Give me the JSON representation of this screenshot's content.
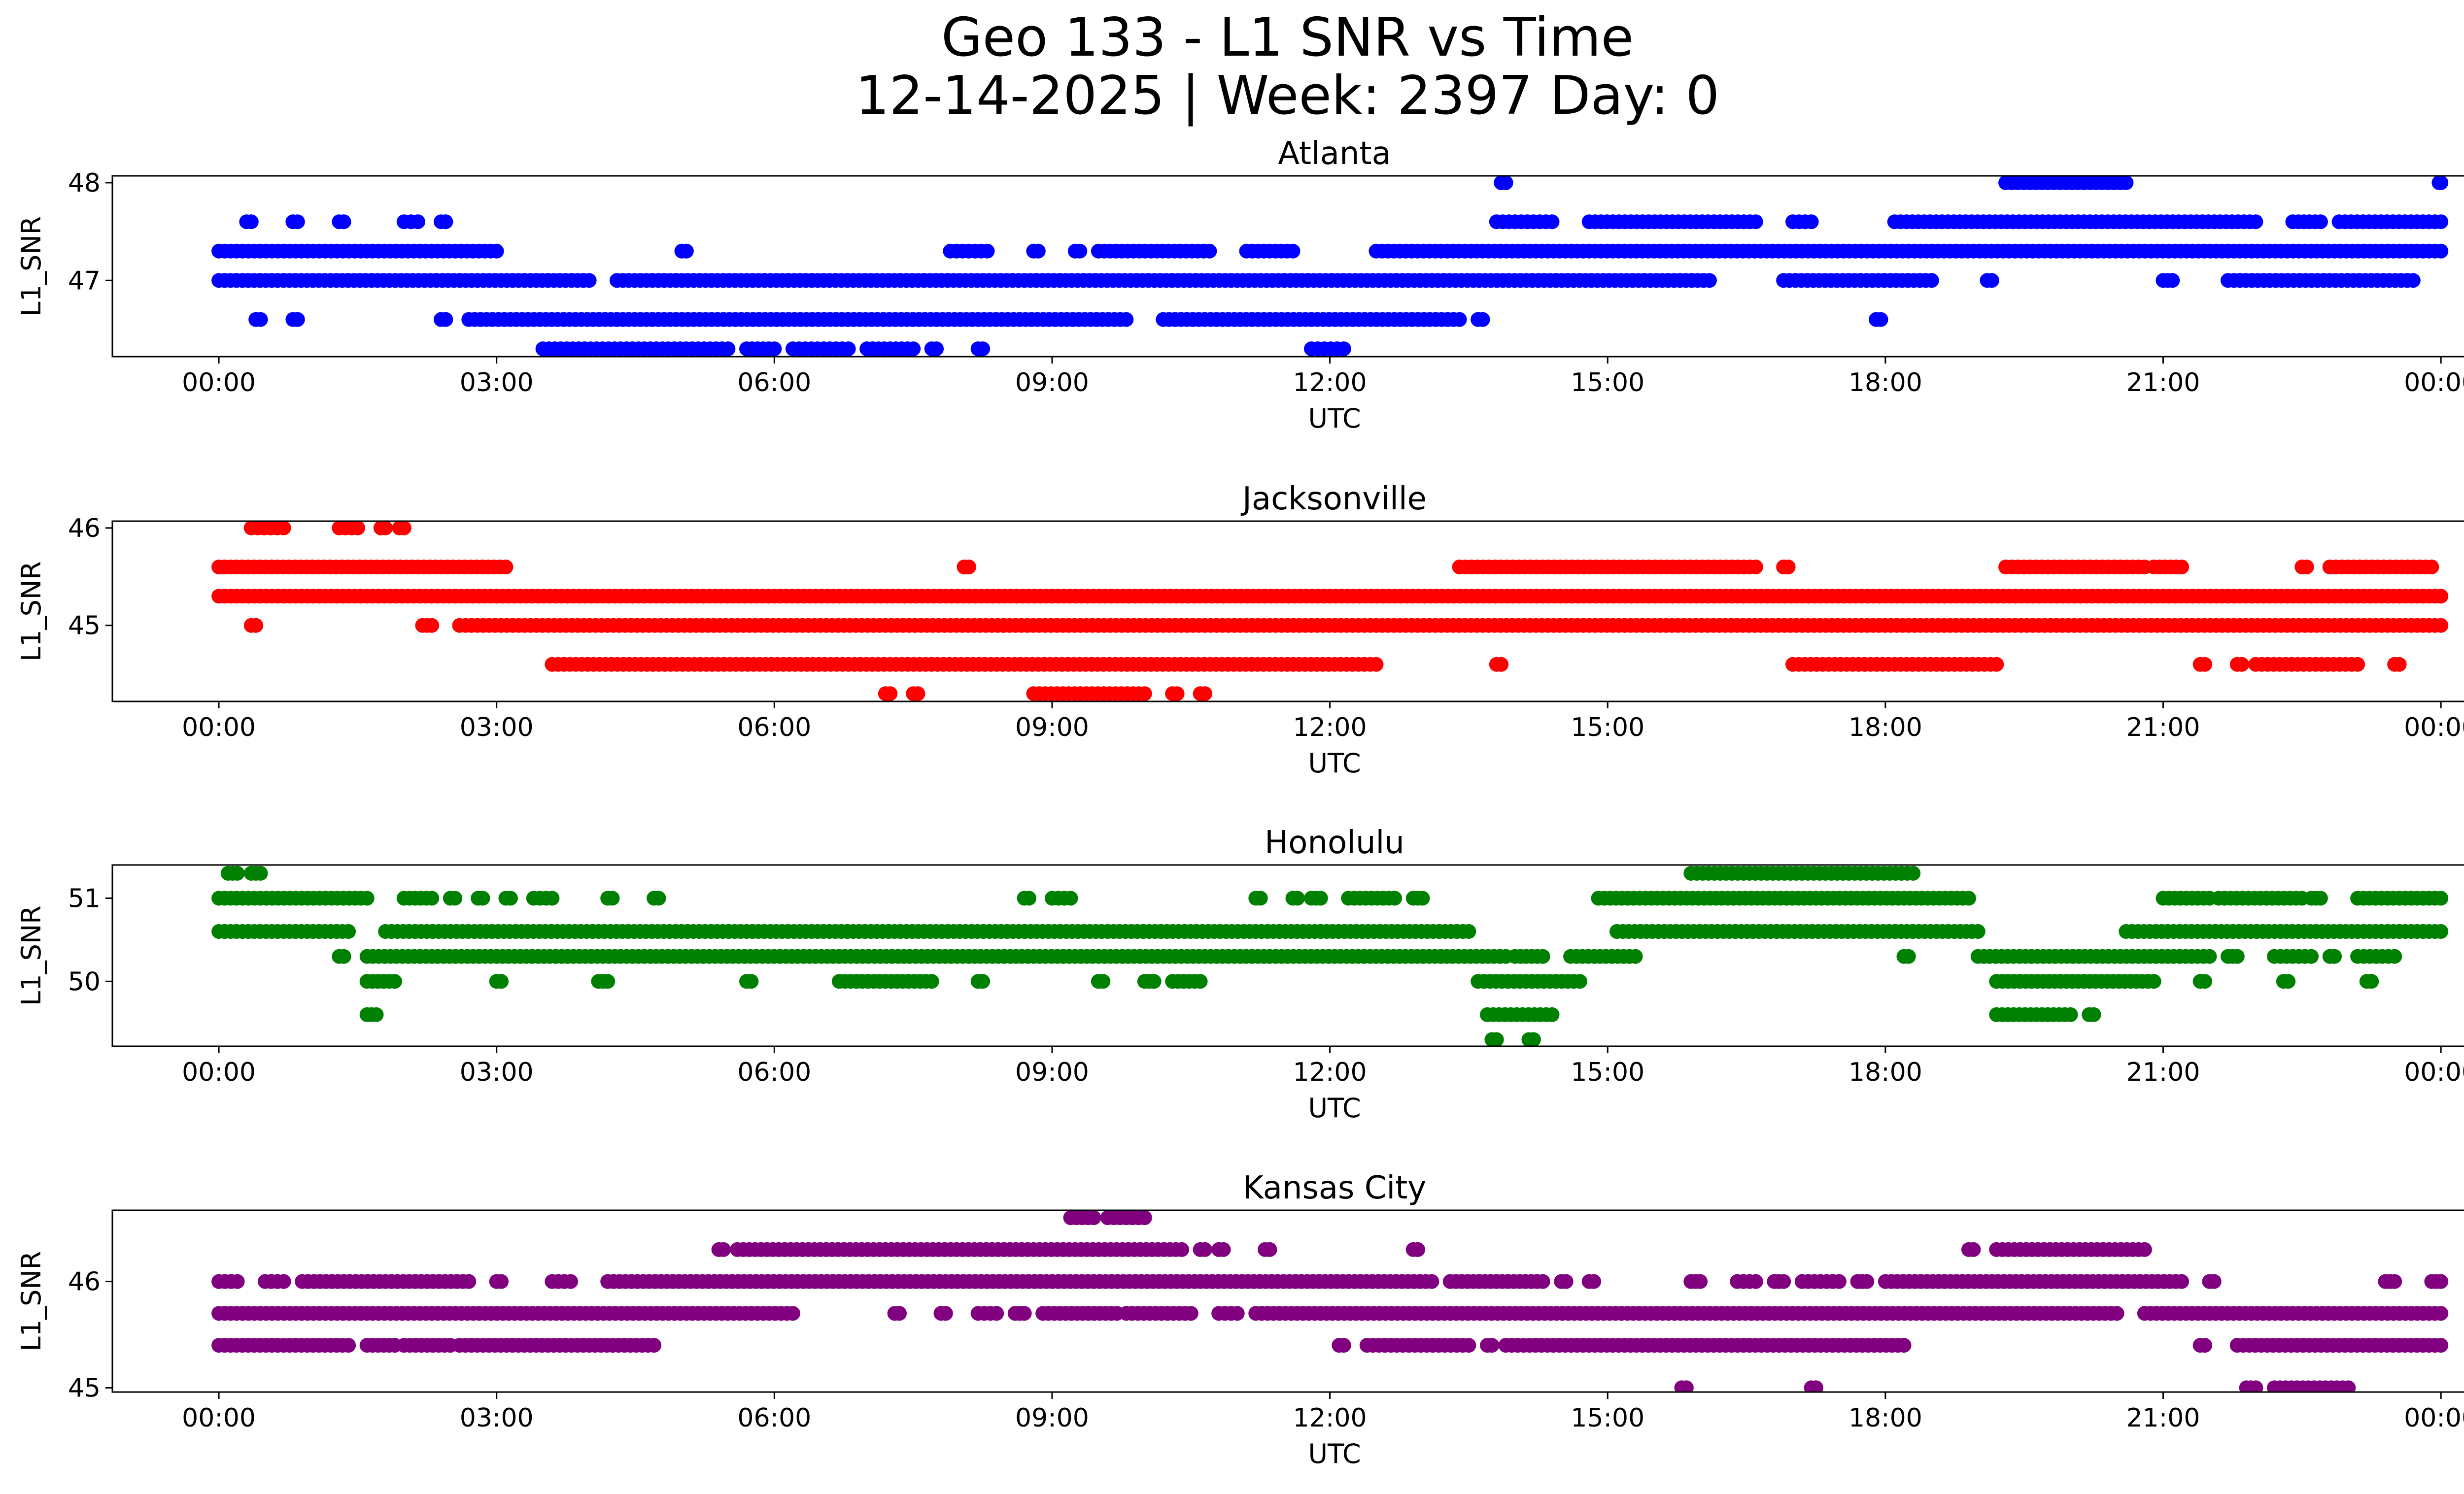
{
  "title": {
    "line1": "Geo 133 - L1 SNR vs Time",
    "line2": "12-14-2025 | Week: 2397 Day: 0"
  },
  "chart_data": [
    {
      "type": "scatter",
      "title": "Atlanta",
      "color": "#0000ff",
      "xlabel": "UTC",
      "ylabel": "L1_SNR",
      "x_units": "hours UTC",
      "xlim": [
        -1.15,
        25.25
      ],
      "xticks": [
        0,
        3,
        6,
        9,
        12,
        15,
        18,
        21,
        24
      ],
      "xtick_labels": [
        "00:00",
        "03:00",
        "06:00",
        "09:00",
        "12:00",
        "15:00",
        "18:00",
        "21:00",
        "00:00"
      ],
      "ylim": [
        46.22,
        48.07
      ],
      "yticks": [
        47,
        48
      ],
      "ytick_labels": [
        "47",
        "48"
      ],
      "bands": [
        {
          "y": 48.0,
          "segments": [
            [
              13.85,
              13.9
            ],
            [
              19.3,
              20.6
            ],
            [
              23.98,
              24.0
            ]
          ]
        },
        {
          "y": 47.6,
          "segments": [
            [
              0.3,
              0.35
            ],
            [
              0.8,
              0.85
            ],
            [
              1.3,
              1.35
            ],
            [
              2.0,
              2.15
            ],
            [
              2.4,
              2.45
            ],
            [
              13.8,
              14.4
            ],
            [
              14.8,
              16.6
            ],
            [
              17.0,
              17.2
            ],
            [
              18.1,
              22.0
            ],
            [
              22.4,
              22.7
            ],
            [
              22.9,
              24.0
            ]
          ]
        },
        {
          "y": 47.3,
          "segments": [
            [
              0.0,
              3.0
            ],
            [
              5.0,
              5.05
            ],
            [
              7.9,
              8.3
            ],
            [
              8.8,
              8.85
            ],
            [
              9.25,
              9.3
            ],
            [
              9.5,
              10.7
            ],
            [
              11.1,
              11.6
            ],
            [
              12.5,
              24.0
            ]
          ]
        },
        {
          "y": 47.0,
          "segments": [
            [
              0.0,
              4.0
            ],
            [
              4.3,
              16.1
            ],
            [
              16.9,
              18.5
            ],
            [
              19.1,
              19.15
            ],
            [
              21.0,
              21.1
            ],
            [
              21.7,
              23.7
            ]
          ]
        },
        {
          "y": 46.6,
          "segments": [
            [
              0.4,
              0.45
            ],
            [
              0.8,
              0.85
            ],
            [
              2.4,
              2.45
            ],
            [
              2.7,
              9.8
            ],
            [
              10.2,
              13.4
            ],
            [
              13.6,
              13.65
            ],
            [
              17.9,
              17.95
            ]
          ]
        },
        {
          "y": 46.3,
          "segments": [
            [
              3.5,
              5.5
            ],
            [
              5.7,
              6.0
            ],
            [
              6.2,
              6.8
            ],
            [
              7.0,
              7.5
            ],
            [
              7.7,
              7.75
            ],
            [
              8.2,
              8.25
            ],
            [
              11.8,
              12.15
            ]
          ]
        }
      ]
    },
    {
      "type": "scatter",
      "title": "Jacksonville",
      "color": "#ff0000",
      "xlabel": "UTC",
      "ylabel": "L1_SNR",
      "x_units": "hours UTC",
      "xlim": [
        -1.15,
        25.25
      ],
      "xticks": [
        0,
        3,
        6,
        9,
        12,
        15,
        18,
        21,
        24
      ],
      "xtick_labels": [
        "00:00",
        "03:00",
        "06:00",
        "09:00",
        "12:00",
        "15:00",
        "18:00",
        "21:00",
        "00:00"
      ],
      "ylim": [
        44.22,
        46.07
      ],
      "yticks": [
        45,
        46
      ],
      "ytick_labels": [
        "45",
        "46"
      ],
      "bands": [
        {
          "y": 46.0,
          "segments": [
            [
              0.35,
              0.7
            ],
            [
              1.3,
              1.5
            ],
            [
              1.75,
              1.8
            ],
            [
              1.95,
              2.0
            ]
          ]
        },
        {
          "y": 45.6,
          "segments": [
            [
              0.0,
              3.1
            ],
            [
              8.05,
              8.1
            ],
            [
              13.4,
              16.6
            ],
            [
              16.9,
              16.95
            ],
            [
              19.3,
              20.8
            ],
            [
              20.9,
              21.2
            ],
            [
              22.5,
              22.55
            ],
            [
              22.8,
              23.9
            ]
          ]
        },
        {
          "y": 45.3,
          "segments": [
            [
              0.0,
              24.0
            ]
          ]
        },
        {
          "y": 45.0,
          "segments": [
            [
              0.35,
              0.4
            ],
            [
              2.2,
              2.3
            ],
            [
              2.6,
              24.0
            ]
          ]
        },
        {
          "y": 44.6,
          "segments": [
            [
              3.6,
              12.5
            ],
            [
              13.8,
              13.85
            ],
            [
              17.0,
              19.2
            ],
            [
              21.4,
              21.45
            ],
            [
              21.8,
              21.85
            ],
            [
              22.0,
              23.1
            ],
            [
              23.5,
              23.55
            ]
          ]
        },
        {
          "y": 44.3,
          "segments": [
            [
              7.2,
              7.25
            ],
            [
              7.5,
              7.55
            ],
            [
              8.8,
              10.0
            ],
            [
              10.3,
              10.35
            ],
            [
              10.6,
              10.65
            ]
          ]
        }
      ]
    },
    {
      "type": "scatter",
      "title": "Honolulu",
      "color": "#008000",
      "xlabel": "UTC",
      "ylabel": "L1_SNR",
      "x_units": "hours UTC",
      "xlim": [
        -1.15,
        25.25
      ],
      "xticks": [
        0,
        3,
        6,
        9,
        12,
        15,
        18,
        21,
        24
      ],
      "xtick_labels": [
        "00:00",
        "03:00",
        "06:00",
        "09:00",
        "12:00",
        "15:00",
        "18:00",
        "21:00",
        "00:00"
      ],
      "ylim": [
        49.22,
        51.4
      ],
      "yticks": [
        50,
        51
      ],
      "ytick_labels": [
        "50",
        "51"
      ],
      "bands": [
        {
          "y": 51.3,
          "segments": [
            [
              0.1,
              0.2
            ],
            [
              0.35,
              0.45
            ],
            [
              15.9,
              18.3
            ]
          ]
        },
        {
          "y": 51.0,
          "segments": [
            [
              0.0,
              1.6
            ],
            [
              2.0,
              2.3
            ],
            [
              2.5,
              2.55
            ],
            [
              2.8,
              2.85
            ],
            [
              3.1,
              3.15
            ],
            [
              3.4,
              3.6
            ],
            [
              4.2,
              4.25
            ],
            [
              4.7,
              4.75
            ],
            [
              8.7,
              8.75
            ],
            [
              9.0,
              9.2
            ],
            [
              11.2,
              11.25
            ],
            [
              11.6,
              11.65
            ],
            [
              11.8,
              11.9
            ],
            [
              12.2,
              12.7
            ],
            [
              12.9,
              13.0
            ],
            [
              14.9,
              18.9
            ],
            [
              21.0,
              21.5
            ],
            [
              21.6,
              22.5
            ],
            [
              22.6,
              22.7
            ],
            [
              23.1,
              24.0
            ]
          ]
        },
        {
          "y": 50.6,
          "segments": [
            [
              0.0,
              1.4
            ],
            [
              1.8,
              13.5
            ],
            [
              15.1,
              19.0
            ],
            [
              20.6,
              24.0
            ]
          ]
        },
        {
          "y": 50.3,
          "segments": [
            [
              1.3,
              1.35
            ],
            [
              1.6,
              13.9
            ],
            [
              14.0,
              14.3
            ],
            [
              14.6,
              15.3
            ],
            [
              18.2,
              18.25
            ],
            [
              19.0,
              21.5
            ],
            [
              21.7,
              21.8
            ],
            [
              22.2,
              22.6
            ],
            [
              22.8,
              22.85
            ],
            [
              23.1,
              23.5
            ]
          ]
        },
        {
          "y": 50.0,
          "segments": [
            [
              1.6,
              1.9
            ],
            [
              3.0,
              3.05
            ],
            [
              4.1,
              4.2
            ],
            [
              5.7,
              5.75
            ],
            [
              6.7,
              7.7
            ],
            [
              8.2,
              8.25
            ],
            [
              9.5,
              9.55
            ],
            [
              10.0,
              10.1
            ],
            [
              10.3,
              10.6
            ],
            [
              13.6,
              14.7
            ],
            [
              19.2,
              20.9
            ],
            [
              21.4,
              21.45
            ],
            [
              22.3,
              22.35
            ],
            [
              23.2,
              23.25
            ]
          ]
        },
        {
          "y": 49.6,
          "segments": [
            [
              1.6,
              1.7
            ],
            [
              13.7,
              14.4
            ],
            [
              19.2,
              20.0
            ],
            [
              20.2,
              20.25
            ]
          ]
        },
        {
          "y": 49.3,
          "segments": [
            [
              13.75,
              13.8
            ],
            [
              14.15,
              14.2
            ]
          ]
        }
      ]
    },
    {
      "type": "scatter",
      "title": "Kansas City",
      "color": "#800080",
      "xlabel": "UTC",
      "ylabel": "L1_SNR",
      "x_units": "hours UTC",
      "xlim": [
        -1.15,
        25.25
      ],
      "xticks": [
        0,
        3,
        6,
        9,
        12,
        15,
        18,
        21,
        24
      ],
      "xtick_labels": [
        "00:00",
        "03:00",
        "06:00",
        "09:00",
        "12:00",
        "15:00",
        "18:00",
        "21:00",
        "00:00"
      ],
      "ylim": [
        44.96,
        46.67
      ],
      "yticks": [
        45,
        46
      ],
      "ytick_labels": [
        "45",
        "46"
      ],
      "bands": [
        {
          "y": 46.6,
          "segments": [
            [
              9.2,
              9.45
            ],
            [
              9.6,
              10.0
            ]
          ]
        },
        {
          "y": 46.3,
          "segments": [
            [
              5.4,
              5.45
            ],
            [
              5.6,
              10.4
            ],
            [
              10.6,
              10.65
            ],
            [
              10.8,
              10.85
            ],
            [
              11.3,
              11.35
            ],
            [
              12.9,
              12.95
            ],
            [
              18.9,
              18.95
            ],
            [
              19.2,
              20.8
            ]
          ]
        },
        {
          "y": 46.0,
          "segments": [
            [
              0.0,
              0.2
            ],
            [
              0.5,
              0.7
            ],
            [
              0.9,
              2.7
            ],
            [
              3.0,
              3.05
            ],
            [
              3.6,
              3.8
            ],
            [
              4.2,
              13.1
            ],
            [
              13.3,
              14.3
            ],
            [
              14.5,
              14.55
            ],
            [
              14.8,
              14.85
            ],
            [
              15.9,
              16.0
            ],
            [
              16.4,
              16.6
            ],
            [
              16.8,
              16.9
            ],
            [
              17.1,
              17.5
            ],
            [
              17.7,
              17.8
            ],
            [
              18.0,
              21.2
            ],
            [
              21.5,
              21.55
            ],
            [
              23.4,
              23.5
            ],
            [
              23.9,
              24.0
            ]
          ]
        },
        {
          "y": 45.7,
          "segments": [
            [
              0.0,
              6.2
            ],
            [
              7.3,
              7.35
            ],
            [
              7.8,
              7.85
            ],
            [
              8.2,
              8.4
            ],
            [
              8.6,
              8.7
            ],
            [
              8.9,
              9.7
            ],
            [
              9.8,
              10.5
            ],
            [
              10.8,
              11.0
            ],
            [
              11.2,
              20.5
            ],
            [
              20.8,
              24.0
            ]
          ]
        },
        {
          "y": 45.4,
          "segments": [
            [
              0.0,
              1.4
            ],
            [
              1.6,
              1.9
            ],
            [
              2.0,
              2.5
            ],
            [
              2.6,
              4.7
            ],
            [
              12.1,
              12.15
            ],
            [
              12.4,
              13.5
            ],
            [
              13.7,
              13.75
            ],
            [
              13.9,
              18.2
            ],
            [
              21.4,
              21.45
            ],
            [
              21.8,
              24.0
            ]
          ]
        },
        {
          "y": 45.0,
          "segments": [
            [
              15.8,
              15.85
            ],
            [
              17.2,
              17.25
            ],
            [
              21.9,
              22.0
            ],
            [
              22.2,
              23.0
            ]
          ]
        }
      ]
    }
  ]
}
